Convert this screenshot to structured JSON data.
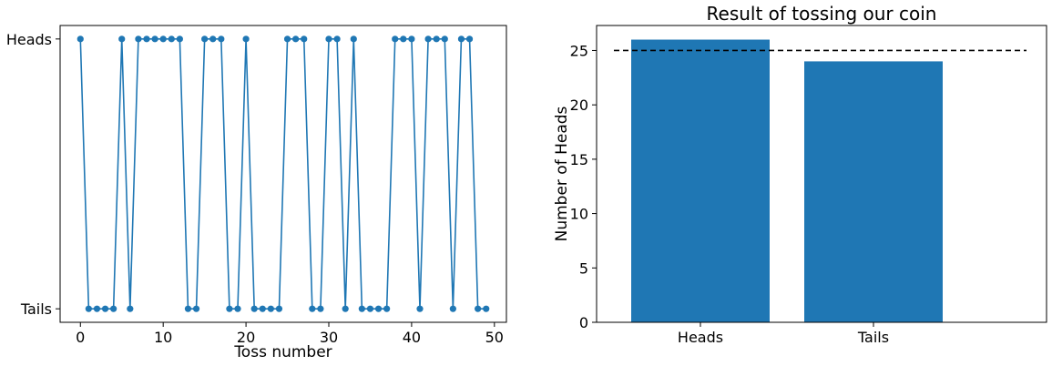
{
  "chart_data": [
    {
      "type": "line",
      "title": "",
      "xlabel": "Toss number",
      "ylabel": "",
      "xlim": [
        -2.45,
        51.45
      ],
      "xticks": [
        0,
        10,
        20,
        30,
        40,
        50
      ],
      "ylim": [
        -0.05,
        1.05
      ],
      "yticks": [
        {
          "value": 0,
          "label": "Tails"
        },
        {
          "value": 1,
          "label": "Heads"
        }
      ],
      "marker": "circle",
      "color": "#1f77b4",
      "x": [
        0,
        1,
        2,
        3,
        4,
        5,
        6,
        7,
        8,
        9,
        10,
        11,
        12,
        13,
        14,
        15,
        16,
        17,
        18,
        19,
        20,
        21,
        22,
        23,
        24,
        25,
        26,
        27,
        28,
        29,
        30,
        31,
        32,
        33,
        34,
        35,
        36,
        37,
        38,
        39,
        40,
        41,
        42,
        43,
        44,
        45,
        46,
        47,
        48,
        49
      ],
      "y": [
        1,
        0,
        0,
        0,
        0,
        1,
        0,
        1,
        1,
        1,
        1,
        1,
        1,
        0,
        0,
        1,
        1,
        1,
        0,
        0,
        1,
        0,
        0,
        0,
        0,
        1,
        1,
        1,
        0,
        0,
        1,
        1,
        0,
        1,
        0,
        0,
        0,
        0,
        1,
        1,
        1,
        0,
        1,
        1,
        1,
        0,
        1,
        1,
        0,
        0
      ]
    },
    {
      "type": "bar",
      "title": "Result of tossing our coin",
      "xlabel": "",
      "ylabel": "Number of Heads",
      "categories": [
        "Heads",
        "Tails"
      ],
      "values": [
        26,
        24
      ],
      "xlim": [
        -0.6,
        2.0
      ],
      "ylim": [
        0,
        27.3
      ],
      "yticks": [
        0,
        5,
        10,
        15,
        20,
        25
      ],
      "color": "#1f77b4",
      "reference_line": {
        "value": 25,
        "style": "dashed",
        "color": "#000000",
        "x_range": [
          -0.5,
          2.0
        ]
      }
    }
  ]
}
